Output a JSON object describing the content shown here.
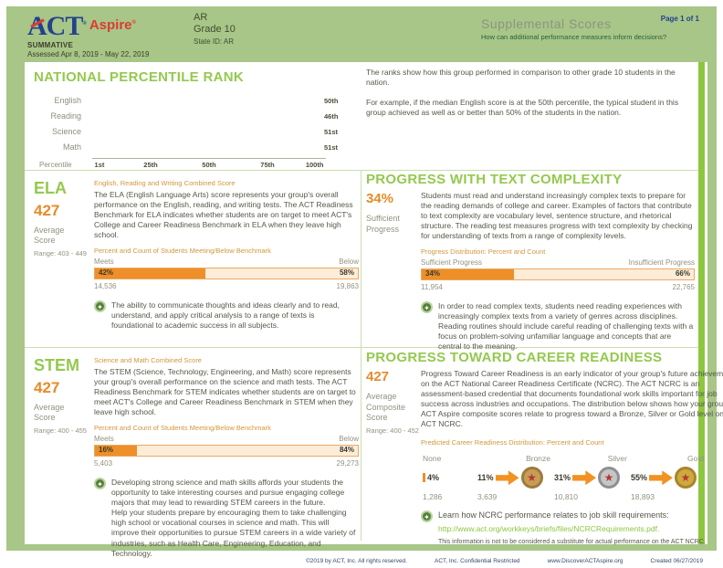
{
  "header": {
    "logo_act": "ACT",
    "logo_aspire": "Aspire",
    "reg": "®",
    "summative": "SUMMATIVE",
    "assessed": "Assessed Apr 8, 2019 - May 22, 2019",
    "region": "AR",
    "grade": "Grade 10",
    "state_id": "State ID: AR",
    "title": "Supplemental Scores",
    "question": "How can additional performance measures inform decisions?",
    "page_label": "Page 1 of 1"
  },
  "percentile": {
    "title": "NATIONAL PERCENTILE RANK",
    "axis_label": "Percentile",
    "ticks": [
      "1st",
      "25th",
      "50th",
      "75th",
      "100th"
    ],
    "bars": [
      {
        "label": "English",
        "value": 50,
        "display": "50th"
      },
      {
        "label": "Reading",
        "value": 46,
        "display": "46th"
      },
      {
        "label": "Science",
        "value": 51,
        "display": "51st"
      },
      {
        "label": "Math",
        "value": 51,
        "display": "51st"
      }
    ],
    "note1": "The ranks show how this group performed in comparison to other grade 10 students in the nation.",
    "note2": "For example, if the median English score is at the 50th percentile, the typical student in this group achieved as well as or better than 50% of the students in the nation."
  },
  "ela": {
    "heading": "ELA",
    "score": "427",
    "score_label": "Average Score",
    "range": "Range: 403 - 449",
    "caption": "English, Reading and Writing Combined Score",
    "body": "The ELA (English Language Arts) score represents your group's overall performance on the English, reading, and writing tests. The ACT Readiness Benchmark for ELA indicates whether students are on target to meet ACT's College and Career Readiness Benchmark in ELA when they leave high school.",
    "chart_caption": "Percent and Count of Students Meeting/Below Benchmark",
    "meets_label": "Meets",
    "below_label": "Below",
    "meets_pct": 42,
    "meets_pct_label": "42%",
    "below_pct_label": "58%",
    "meets_count": "14,536",
    "below_count": "19,863",
    "tip": "The ability to communicate thoughts and ideas clearly and to read, understand, and apply critical analysis to a range of texts is foundational to academic success in all subjects."
  },
  "text_complexity": {
    "title": "PROGRESS WITH TEXT COMPLEXITY",
    "pct": "34%",
    "pct_label": "Sufficient Progress",
    "body": "Students must read and understand increasingly complex texts to prepare for the reading demands of college and career. Examples of factors that contribute to text complexity are vocabulary level, sentence structure, and rhetorical structure. The reading test measures progress with text complexity by checking for understanding of texts from a range of complexity levels.",
    "chart_caption": "Progress Distribution: Percent and Count",
    "sufficient_label": "Sufficient Progress",
    "insufficient_label": "Insufficient Progress",
    "sufficient_pct": 34,
    "sufficient_pct_label": "34%",
    "insufficient_pct_label": "66%",
    "sufficient_count": "11,954",
    "insufficient_count": "22,765",
    "tip": "In order to read complex texts, students need reading experiences with increasingly complex texts from a variety of genres across disciplines. Reading routines should include careful reading of challenging texts with a focus on problem-solving unfamiliar language and concepts that are central to the meaning."
  },
  "stem": {
    "heading": "STEM",
    "score": "427",
    "score_label": "Average Score",
    "range": "Range: 400 - 455",
    "caption": "Science and Math Combined Score",
    "body": "The STEM (Science, Technology, Engineering, and Math) score represents your group's overall performance on the science and math tests. The ACT Readiness Benchmark for STEM indicates whether students are on target to meet ACT's College and Career Readiness Benchmark in STEM when they leave high school.",
    "chart_caption": "Percent and Count of Students Meeting/Below Benchmark",
    "meets_label": "Meets",
    "below_label": "Below",
    "meets_pct": 16,
    "meets_pct_label": "16%",
    "below_pct_label": "84%",
    "meets_count": "5,403",
    "below_count": "29,273",
    "tip": "Developing strong science and math skills affords your students the opportunity to take interesting courses and pursue engaging college majors that may lead to rewarding STEM careers in the future.\nHelp your students prepare by encouraging them to take challenging high school or vocational courses in science and math. This will improve their opportunities to pursue STEM careers in a wide variety of industries, such as Health Care, Engineering, Education, and Technology."
  },
  "career": {
    "title": "PROGRESS TOWARD CAREER READINESS",
    "score": "427",
    "score_label": "Average Composite Score",
    "range": "Range: 400 - 452",
    "body": "Progress Toward Career Readiness is an early indicator of your group's future achievement on the ACT National Career Readiness Certificate (NCRC). The ACT NCRC is an assessment-based credential that documents foundational work skills important for job success across industries and occupations. The distribution below shows how your group's ACT Aspire composite scores relate to progress toward a Bronze, Silver or Gold level on the ACT NCRC.",
    "chart_caption": "Predicted Career Readiness Distribution: Percent and Count",
    "levels": [
      {
        "name": "None",
        "pct": "4%",
        "count": "1,286"
      },
      {
        "name": "Bronze",
        "pct": "11%",
        "count": "3,639"
      },
      {
        "name": "Silver",
        "pct": "31%",
        "count": "10,810"
      },
      {
        "name": "Gold",
        "pct": "55%",
        "count": "18,893"
      }
    ],
    "medal_star": "★",
    "link_intro": "Learn how NCRC performance relates to job skill requirements:",
    "link_url": "http://www.act.org/workkeys/briefs/files/NCRCRequirements.pdf.",
    "disclaimer": "This information is not to be considered a substitute for actual performance on the ACT NCRC."
  },
  "tip_icon_glyph": "✦",
  "footer": {
    "copyright": "©2019 by ACT, Inc. All rights reserved.",
    "confidential": "ACT, Inc. Confidential Restricted",
    "website": "www.DiscoverACTAspire.org",
    "created": "Created 06/27/2019"
  },
  "colors": {
    "background_green": "#a7c687",
    "bright_green": "#8dc63f",
    "heading_green": "#94c94e",
    "orange": "#ee8f29",
    "act_navy": "#24418e",
    "aspire_red": "#dd3b35",
    "body_text": "#57574a",
    "gray_label": "#93927f"
  },
  "chart_data": [
    {
      "type": "bar",
      "title": "NATIONAL PERCENTILE RANK",
      "categories": [
        "English",
        "Reading",
        "Science",
        "Math"
      ],
      "values": [
        50,
        46,
        51,
        51
      ],
      "value_labels": [
        "50th",
        "46th",
        "51st",
        "51st"
      ],
      "xlabel": "Percentile",
      "ylabel": "",
      "xlim": [
        1,
        100
      ],
      "x_ticks": [
        "1st",
        "25th",
        "50th",
        "75th",
        "100th"
      ],
      "orientation": "horizontal",
      "grid": false
    },
    {
      "type": "bar",
      "title": "ELA: Percent and Count of Students Meeting/Below Benchmark",
      "categories": [
        "Meets",
        "Below"
      ],
      "values": [
        42,
        58
      ],
      "counts": [
        14536,
        19863
      ],
      "orientation": "stacked-horizontal"
    },
    {
      "type": "bar",
      "title": "Progress Distribution: Percent and Count",
      "categories": [
        "Sufficient Progress",
        "Insufficient Progress"
      ],
      "values": [
        34,
        66
      ],
      "counts": [
        11954,
        22765
      ],
      "orientation": "stacked-horizontal"
    },
    {
      "type": "bar",
      "title": "STEM: Percent and Count of Students Meeting/Below Benchmark",
      "categories": [
        "Meets",
        "Below"
      ],
      "values": [
        16,
        84
      ],
      "counts": [
        5403,
        29273
      ],
      "orientation": "stacked-horizontal"
    },
    {
      "type": "bar",
      "title": "Predicted Career Readiness Distribution: Percent and Count",
      "categories": [
        "None",
        "Bronze",
        "Silver",
        "Gold"
      ],
      "values": [
        4,
        11,
        31,
        55
      ],
      "counts": [
        1286,
        3639,
        10810,
        18893
      ],
      "orientation": "horizontal"
    }
  ]
}
